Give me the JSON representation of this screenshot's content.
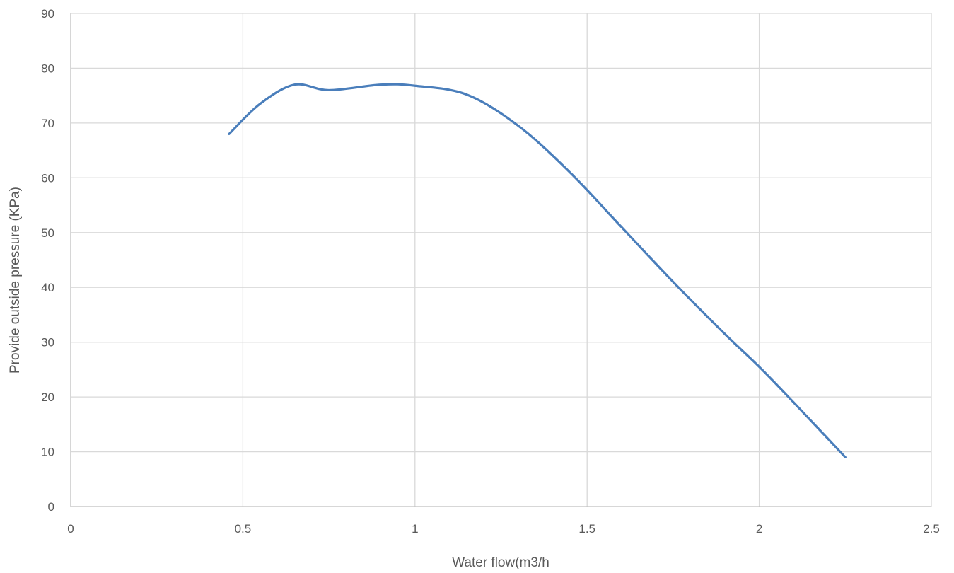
{
  "chart_data": {
    "type": "line",
    "title": "",
    "xlabel": "Water flow(m3/h",
    "ylabel": "Provide outside pressure (KPa)",
    "xlim": [
      0,
      2.5
    ],
    "ylim": [
      0,
      90
    ],
    "x_ticks": [
      "0",
      "0.5",
      "1",
      "1.5",
      "2",
      "2.5"
    ],
    "y_ticks": [
      "0",
      "10",
      "20",
      "30",
      "40",
      "50",
      "60",
      "70",
      "80",
      "90"
    ],
    "grid": true,
    "legend": "none",
    "series": [
      {
        "color": "#4a7ebb",
        "points": [
          [
            0.46,
            68
          ],
          [
            0.55,
            73.5
          ],
          [
            0.65,
            77
          ],
          [
            0.75,
            76
          ],
          [
            0.9,
            77
          ],
          [
            1.0,
            76.8
          ],
          [
            1.15,
            75.2
          ],
          [
            1.3,
            69.5
          ],
          [
            1.45,
            61
          ],
          [
            1.6,
            51
          ],
          [
            1.75,
            41
          ],
          [
            1.9,
            31.5
          ],
          [
            2.0,
            25.5
          ],
          [
            2.1,
            19
          ],
          [
            2.25,
            9
          ]
        ]
      }
    ]
  }
}
